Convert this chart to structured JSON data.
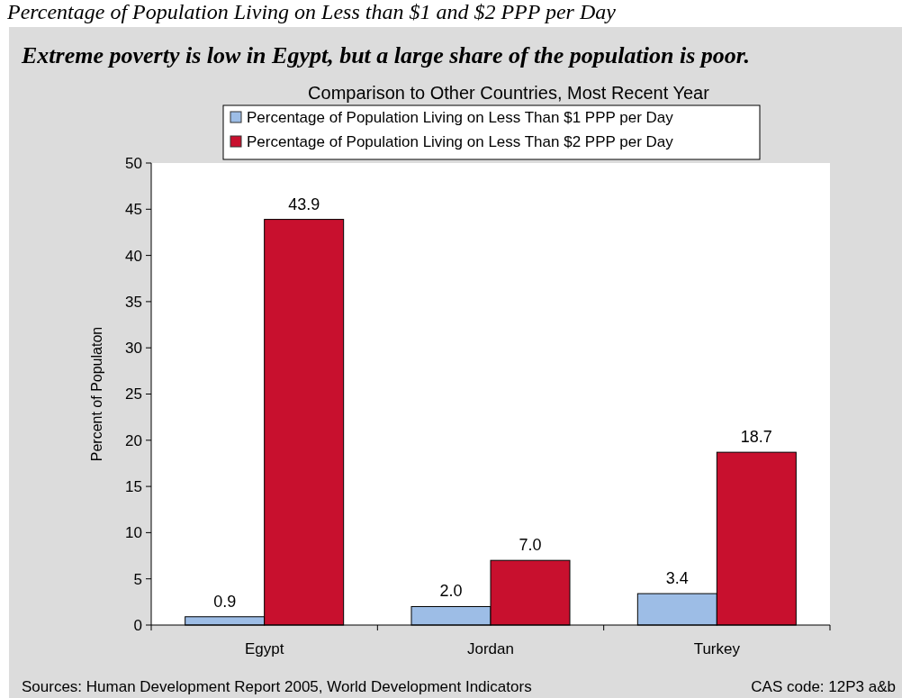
{
  "chart_data": {
    "type": "bar",
    "title": "Extreme poverty is low in Egypt, but a large share of the population is poor.",
    "subtitle": "Comparison to Other Countries, Most Recent Year",
    "ylabel": "Percent of Populaton",
    "annotations": [
      "Percentage of Population Living on Less than $1 and $2 PPP per Day",
      "Sources: Human Development Report 2005, World Development Indicators",
      "CAS code: 12P3 a&b"
    ],
    "categories": [
      "Egypt",
      "Jordan",
      "Turkey"
    ],
    "series": [
      {
        "name": "Percentage of Population Living on Less Than $1 PPP per Day",
        "color": "#9dbde6",
        "values": [
          0.9,
          2.0,
          3.4
        ],
        "value_labels": [
          "0.9",
          "2.0",
          "3.4"
        ]
      },
      {
        "name": "Percentage of Population Living on Less Than $2 PPP per Day",
        "color": "#c8102e",
        "values": [
          43.9,
          7.0,
          18.7
        ],
        "value_labels": [
          "43.9",
          "7.0",
          "18.7"
        ]
      }
    ],
    "ylim": [
      0,
      50
    ],
    "yticks": [
      0,
      5,
      10,
      15,
      20,
      25,
      30,
      35,
      40,
      45,
      50
    ],
    "grid": false,
    "legend": "top"
  }
}
